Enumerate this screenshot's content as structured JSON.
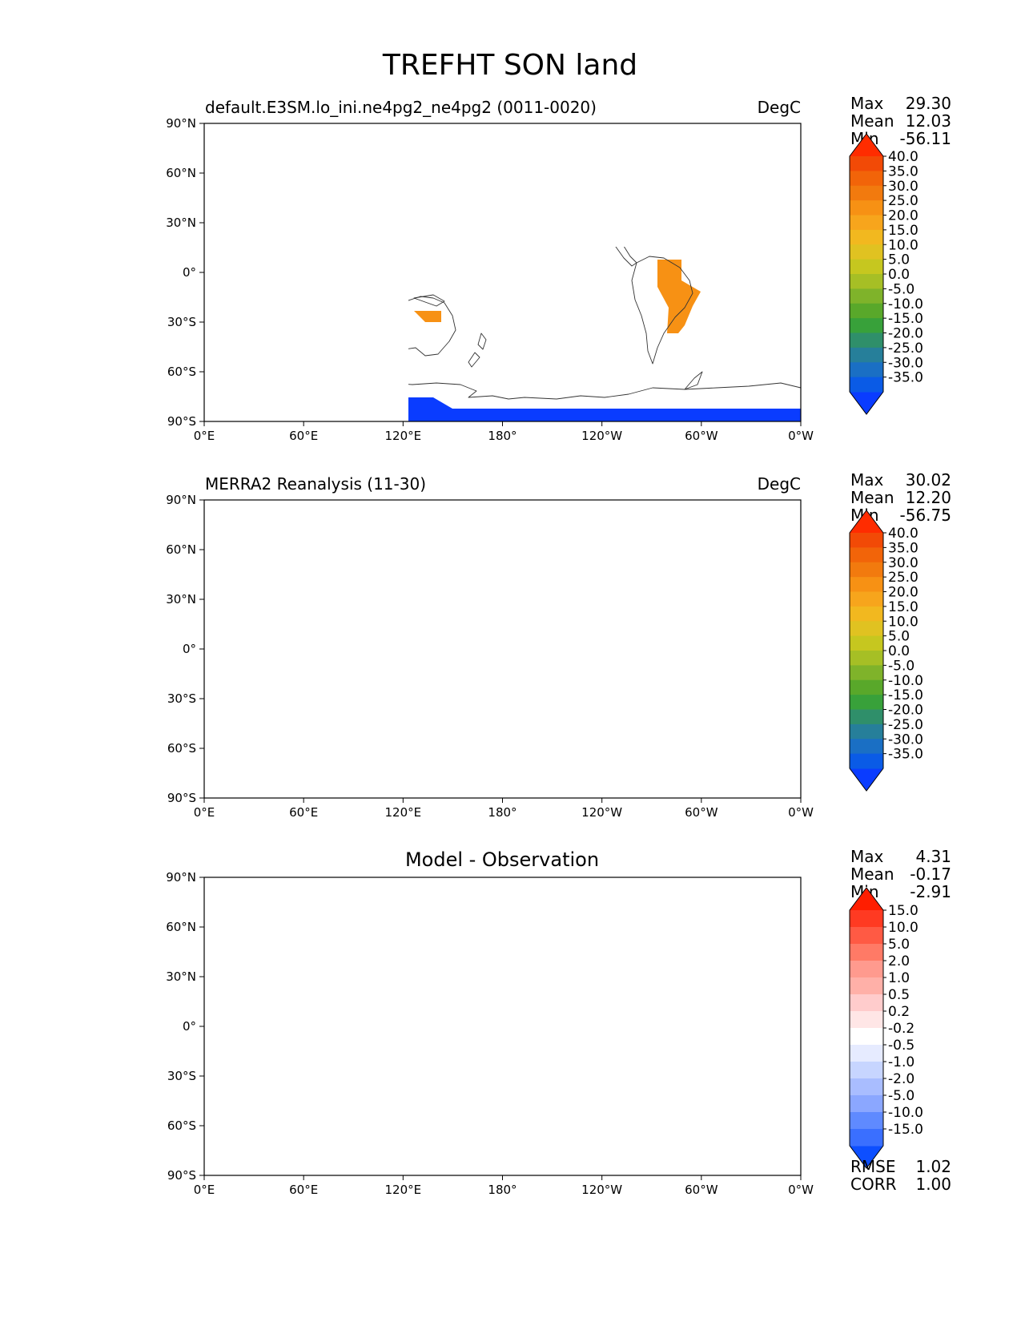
{
  "figure": {
    "title": "TREFHT SON land"
  },
  "colors": {
    "abs_levels": [
      "#0a3cff",
      "#0a5be6",
      "#1a6fc4",
      "#267f9a",
      "#2f8f6a",
      "#38a13a",
      "#59a82a",
      "#7fb32a",
      "#a6bf25",
      "#c6c71f",
      "#e0c221",
      "#f2b81f",
      "#f7a51c",
      "#f79114",
      "#f27a0e",
      "#f26409",
      "#f24a06",
      "#ff2c00"
    ],
    "diff_levels": [
      "#0d4fff",
      "#3a6fff",
      "#5f8aff",
      "#8ba7ff",
      "#a9bdff",
      "#c7d5ff",
      "#e6ebff",
      "#ffffff",
      "#ffe6e6",
      "#ffcccc",
      "#ffb0a8",
      "#ff9a8e",
      "#ff7a66",
      "#ff5a44",
      "#ff3a22",
      "#ff1e00"
    ]
  },
  "panels": [
    {
      "id": "test",
      "left_title": "default.E3SM.lo_ini.ne4pg2_ne4pg2 (0011-0020)",
      "center_title": "",
      "right_title": "DegC",
      "stats": [
        {
          "label": "Max",
          "value": "29.30"
        },
        {
          "label": "Mean",
          "value": "12.03"
        },
        {
          "label": "Min",
          "value": "-56.11"
        }
      ],
      "colorbar": [
        "40.0",
        "35.0",
        "30.0",
        "25.0",
        "20.0",
        "15.0",
        "10.0",
        "5.0",
        "0.0",
        "-5.0",
        "-10.0",
        "-15.0",
        "-20.0",
        "-25.0",
        "-30.0",
        "-35.0"
      ],
      "footer_stats": []
    },
    {
      "id": "ref",
      "left_title": "MERRA2 Reanalysis (11-30)",
      "center_title": "",
      "right_title": "DegC",
      "stats": [
        {
          "label": "Max",
          "value": "30.02"
        },
        {
          "label": "Mean",
          "value": "12.20"
        },
        {
          "label": "Min",
          "value": "-56.75"
        }
      ],
      "colorbar": [
        "40.0",
        "35.0",
        "30.0",
        "25.0",
        "20.0",
        "15.0",
        "10.0",
        "5.0",
        "0.0",
        "-5.0",
        "-10.0",
        "-15.0",
        "-20.0",
        "-25.0",
        "-30.0",
        "-35.0"
      ],
      "footer_stats": []
    },
    {
      "id": "diff",
      "left_title": "",
      "center_title": "Model - Observation",
      "right_title": "",
      "stats": [
        {
          "label": "Max",
          "value": "4.31"
        },
        {
          "label": "Mean",
          "value": "-0.17"
        },
        {
          "label": "Min",
          "value": "-2.91"
        }
      ],
      "colorbar": [
        "15.0",
        "10.0",
        "5.0",
        "2.0",
        "1.0",
        "0.5",
        "0.2",
        "-0.2",
        "-0.5",
        "-1.0",
        "-2.0",
        "-5.0",
        "-10.0",
        "-15.0"
      ],
      "footer_stats": [
        {
          "label": "RMSE",
          "value": "1.02"
        },
        {
          "label": "CORR",
          "value": "1.00"
        }
      ]
    }
  ],
  "axes": {
    "x_ticks": [
      "0°E",
      "60°E",
      "120°E",
      "180°",
      "120°W",
      "60°W",
      "0°W"
    ],
    "y_ticks": [
      "90°N",
      "60°N",
      "30°N",
      "0°",
      "30°S",
      "60°S",
      "90°S"
    ]
  }
}
